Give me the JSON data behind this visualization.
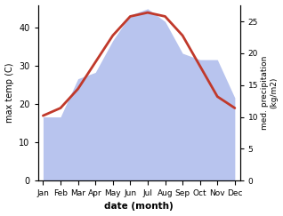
{
  "months": [
    "Jan",
    "Feb",
    "Mar",
    "Apr",
    "May",
    "Jun",
    "Jul",
    "Aug",
    "Sep",
    "Oct",
    "Nov",
    "Dec"
  ],
  "temperature": [
    17,
    19,
    24,
    31,
    38,
    43,
    44,
    43,
    38,
    30,
    22,
    19
  ],
  "precipitation": [
    10,
    10,
    16,
    17,
    22,
    26,
    27,
    25,
    20,
    19,
    19,
    13
  ],
  "temp_color": "#c0392b",
  "precip_fill_color": "#b8c4ee",
  "ylabel_left": "max temp (C)",
  "ylabel_right": "med. precipitation\n(kg/m2)",
  "xlabel": "date (month)",
  "ylim_left": [
    0,
    46
  ],
  "ylim_right": [
    0,
    27.6
  ],
  "yticks_left": [
    0,
    10,
    20,
    30,
    40
  ],
  "yticks_right": [
    0,
    5,
    10,
    15,
    20,
    25
  ],
  "bg_color": "#ffffff",
  "temp_linewidth": 2.0,
  "left_spine_color": "#888888",
  "tick_color": "#444444"
}
